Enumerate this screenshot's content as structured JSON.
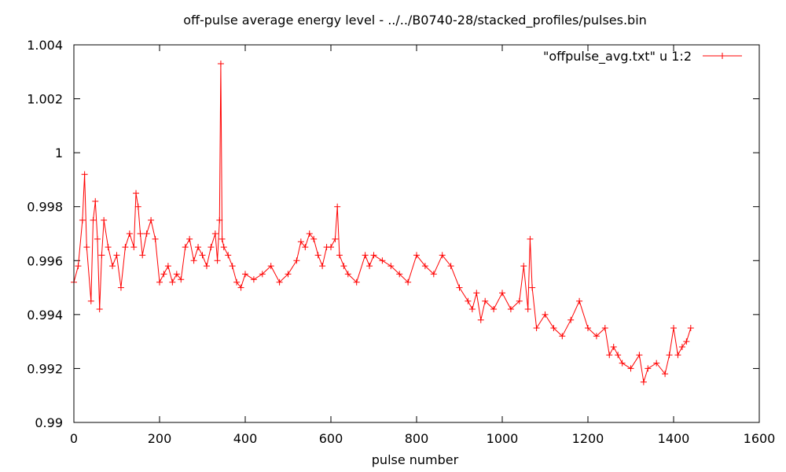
{
  "chart_data": {
    "type": "line",
    "title": "off-pulse average energy level - ../../B0740-28/stacked_profiles/pulses.bin",
    "xlabel": "pulse number",
    "ylabel": "",
    "xlim": [
      0,
      1600
    ],
    "ylim": [
      0.99,
      1.004
    ],
    "x_ticks": [
      "0",
      "200",
      "400",
      "600",
      "800",
      "1000",
      "1200",
      "1400",
      "1600"
    ],
    "y_ticks": [
      "0.99",
      "0.992",
      "0.994",
      "0.996",
      "0.998",
      "1",
      "1.002",
      "1.004"
    ],
    "grid": false,
    "legend_position": "top-right",
    "series": [
      {
        "name": "\"offpulse_avg.txt\" u 1:2",
        "color": "#ff0000",
        "marker": "plus",
        "x": [
          0,
          10,
          20,
          25,
          30,
          40,
          45,
          50,
          55,
          60,
          65,
          70,
          80,
          90,
          100,
          110,
          120,
          130,
          140,
          145,
          150,
          155,
          160,
          170,
          180,
          190,
          200,
          210,
          220,
          230,
          240,
          250,
          260,
          270,
          280,
          290,
          300,
          310,
          320,
          330,
          335,
          340,
          343,
          346,
          350,
          360,
          370,
          380,
          390,
          400,
          420,
          440,
          460,
          480,
          500,
          520,
          530,
          540,
          550,
          560,
          570,
          580,
          590,
          600,
          610,
          615,
          620,
          630,
          640,
          660,
          680,
          690,
          700,
          720,
          740,
          760,
          780,
          800,
          820,
          840,
          860,
          880,
          900,
          920,
          930,
          940,
          950,
          960,
          980,
          1000,
          1020,
          1040,
          1050,
          1060,
          1065,
          1070,
          1080,
          1100,
          1120,
          1140,
          1160,
          1180,
          1200,
          1220,
          1240,
          1250,
          1260,
          1270,
          1280,
          1300,
          1320,
          1330,
          1340,
          1360,
          1380,
          1390,
          1400,
          1410,
          1420,
          1430,
          1440
        ],
        "y": [
          0.9952,
          0.9958,
          0.9975,
          0.9992,
          0.9965,
          0.9945,
          0.9975,
          0.9982,
          0.9968,
          0.9942,
          0.9962,
          0.9975,
          0.9965,
          0.9958,
          0.9962,
          0.995,
          0.9965,
          0.997,
          0.9965,
          0.9985,
          0.998,
          0.997,
          0.9962,
          0.997,
          0.9975,
          0.9968,
          0.9952,
          0.9955,
          0.9958,
          0.9952,
          0.9955,
          0.9953,
          0.9965,
          0.9968,
          0.996,
          0.9965,
          0.9962,
          0.9958,
          0.9965,
          0.997,
          0.996,
          0.9975,
          1.0033,
          0.9968,
          0.9965,
          0.9962,
          0.9958,
          0.9952,
          0.995,
          0.9955,
          0.9953,
          0.9955,
          0.9958,
          0.9952,
          0.9955,
          0.996,
          0.9967,
          0.9965,
          0.997,
          0.9968,
          0.9962,
          0.9958,
          0.9965,
          0.9965,
          0.9968,
          0.998,
          0.9962,
          0.9958,
          0.9955,
          0.9952,
          0.9962,
          0.9958,
          0.9962,
          0.996,
          0.9958,
          0.9955,
          0.9952,
          0.9962,
          0.9958,
          0.9955,
          0.9962,
          0.9958,
          0.995,
          0.9945,
          0.9942,
          0.9948,
          0.9938,
          0.9945,
          0.9942,
          0.9948,
          0.9942,
          0.9945,
          0.9958,
          0.9942,
          0.9968,
          0.995,
          0.9935,
          0.994,
          0.9935,
          0.9932,
          0.9938,
          0.9945,
          0.9935,
          0.9932,
          0.9935,
          0.9925,
          0.9928,
          0.9925,
          0.9922,
          0.992,
          0.9925,
          0.9915,
          0.992,
          0.9922,
          0.9918,
          0.9925,
          0.9935,
          0.9925,
          0.9928,
          0.993,
          0.9935
        ]
      }
    ]
  }
}
